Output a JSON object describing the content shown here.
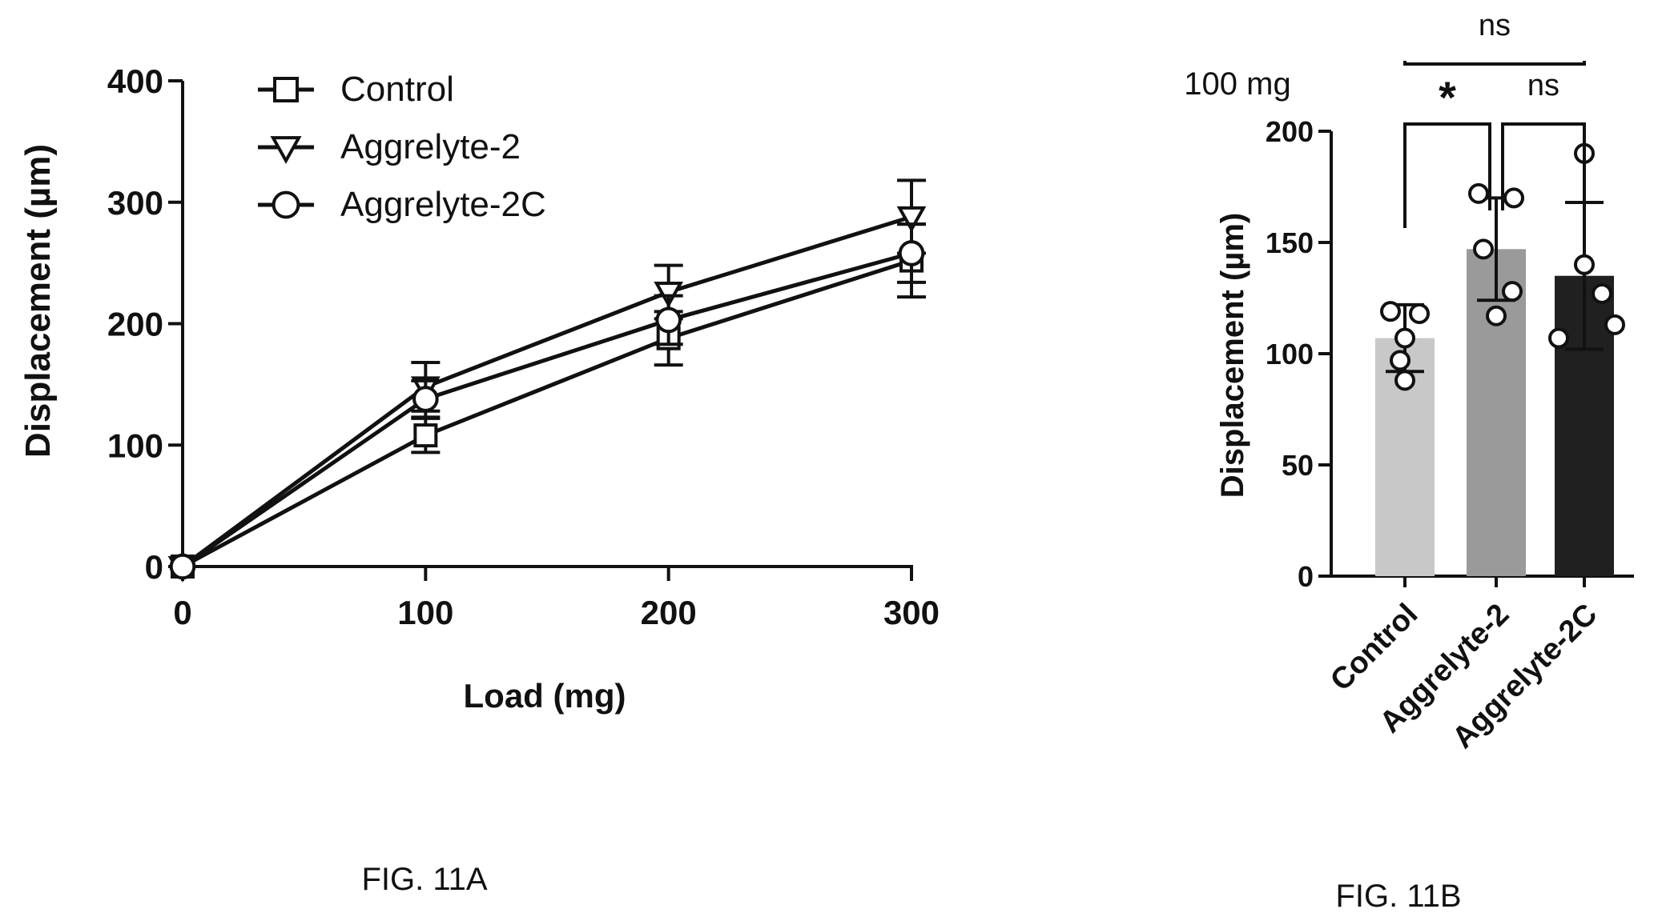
{
  "chart_data": [
    {
      "type": "line",
      "title": "",
      "xlabel": "Load (mg)",
      "ylabel": "Displacement (µm)",
      "x": [
        0,
        100,
        200,
        300
      ],
      "xticks": [
        "0",
        "100",
        "200",
        "300"
      ],
      "yticks": [
        "0",
        "100",
        "200",
        "300",
        "400"
      ],
      "xlim": [
        0,
        300
      ],
      "ylim": [
        0,
        400
      ],
      "legend_position": "top-left",
      "grid": false,
      "series": [
        {
          "name": "Control",
          "marker": "square",
          "values": [
            0,
            108,
            188,
            252
          ],
          "err": [
            0,
            14,
            22,
            30
          ]
        },
        {
          "name": "Aggrelyte-2",
          "marker": "triangle-down",
          "values": [
            0,
            148,
            226,
            288
          ],
          "err": [
            0,
            20,
            22,
            30
          ]
        },
        {
          "name": "Aggrelyte-2C",
          "marker": "circle",
          "values": [
            0,
            138,
            203,
            258
          ],
          "err": [
            0,
            15,
            20,
            24
          ]
        }
      ],
      "caption": "FIG. 11A"
    },
    {
      "type": "bar",
      "title": "100 mg",
      "xlabel": "",
      "ylabel": "Displacement (µm)",
      "ylim": [
        0,
        200
      ],
      "yticks": [
        "0",
        "50",
        "100",
        "150",
        "200"
      ],
      "categories": [
        "Control",
        "Aggrelyte-2",
        "Aggrelyte-2C"
      ],
      "values": [
        107,
        147,
        135
      ],
      "err": [
        15,
        23,
        33
      ],
      "bar_colors": [
        "#c8c8c8",
        "#9a9a9a",
        "#202020"
      ],
      "points": [
        [
          119,
          118,
          107,
          97,
          88
        ],
        [
          172,
          170,
          147,
          128,
          117
        ],
        [
          190,
          140,
          127,
          113,
          107
        ]
      ],
      "significance": [
        {
          "from": 0,
          "to": 1,
          "label": "*"
        },
        {
          "from": 1,
          "to": 2,
          "label": "ns"
        },
        {
          "from": 0,
          "to": 2,
          "label": "ns"
        }
      ],
      "caption": "FIG. 11B"
    }
  ]
}
